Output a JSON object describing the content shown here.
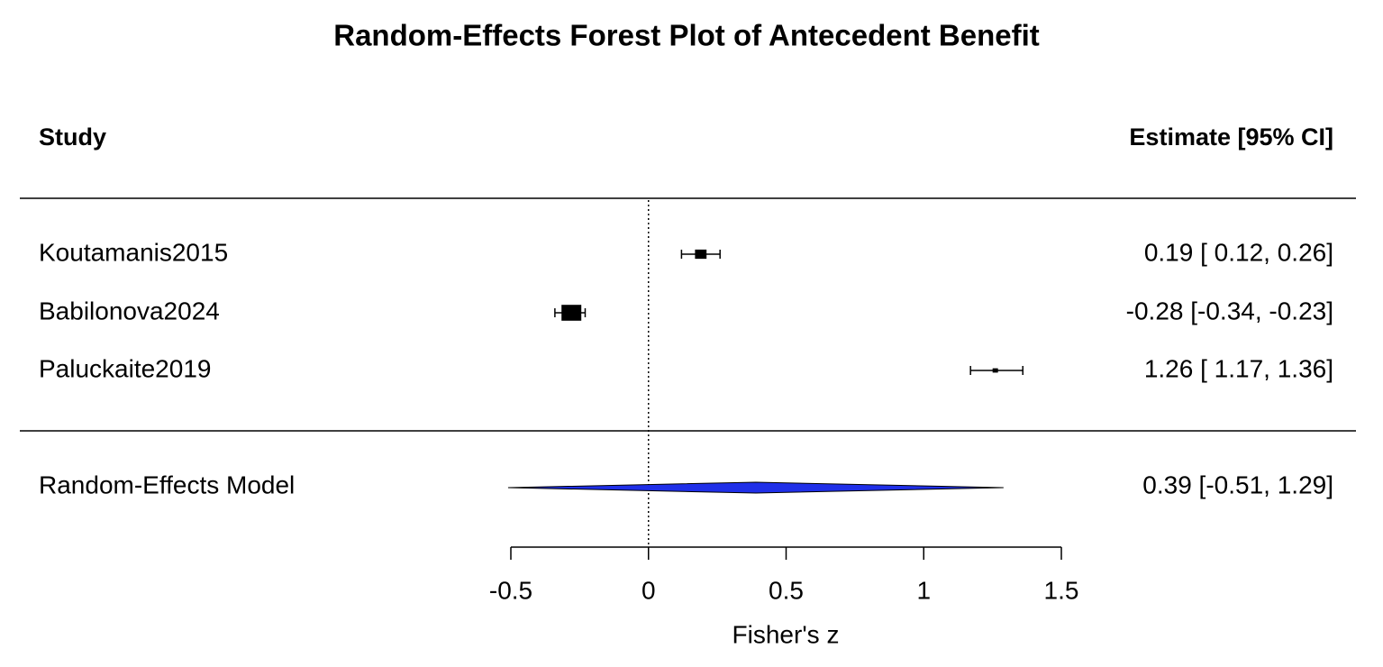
{
  "chart_data": {
    "type": "forest",
    "title": "Random-Effects Forest Plot of Antecedent Benefit",
    "study_header": "Study",
    "estimate_header": "Estimate [95% CI]",
    "xlabel": "Fisher's z",
    "xlim": [
      -0.5,
      1.5
    ],
    "xticks": [
      -0.5,
      0,
      0.5,
      1,
      1.5
    ],
    "refline": 0,
    "studies": [
      {
        "name": "Koutamanis2015",
        "estimate": 0.19,
        "ci_lower": 0.12,
        "ci_upper": 0.26,
        "label": "0.19 [ 0.12,  0.26]"
      },
      {
        "name": "Babilonova2024",
        "estimate": -0.28,
        "ci_lower": -0.34,
        "ci_upper": -0.23,
        "label": "-0.28 [-0.34, -0.23]"
      },
      {
        "name": "Paluckaite2019",
        "estimate": 1.26,
        "ci_lower": 1.17,
        "ci_upper": 1.36,
        "label": "1.26 [ 1.17,  1.36]"
      }
    ],
    "model": {
      "name": "Random-Effects Model",
      "estimate": 0.39,
      "ci_lower": -0.51,
      "ci_upper": 1.29,
      "label": "0.39 [-0.51,  1.29]",
      "color": "#1f2fe8"
    }
  }
}
